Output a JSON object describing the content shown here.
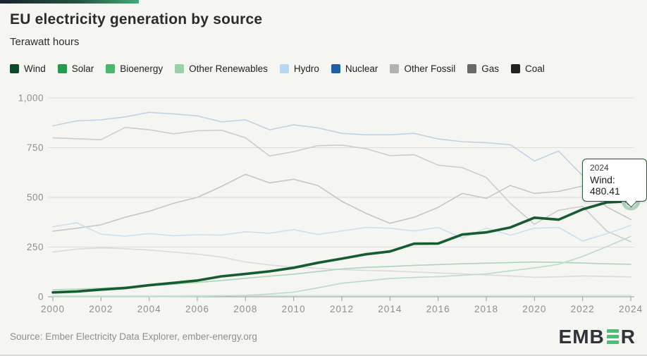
{
  "header": {
    "title": "EU electricity generation by source",
    "subtitle": "Terawatt hours"
  },
  "accent_colors": {
    "gradient_from": "#1b2430",
    "gradient_to": "#41a97a"
  },
  "chart_data": {
    "type": "line",
    "title": "EU electricity generation by source",
    "ylabel": "Terawatt hours",
    "xlabel": "",
    "ylim": [
      0,
      1000
    ],
    "grid": true,
    "legend_position": "top",
    "highlighted_series": "Wind",
    "x": [
      2000,
      2001,
      2002,
      2003,
      2004,
      2005,
      2006,
      2007,
      2008,
      2009,
      2010,
      2011,
      2012,
      2013,
      2014,
      2015,
      2016,
      2017,
      2018,
      2019,
      2020,
      2021,
      2022,
      2023,
      2024
    ],
    "x_tick_labels": [
      "2000",
      "2002",
      "2004",
      "2006",
      "2008",
      "2010",
      "2012",
      "2014",
      "2016",
      "2018",
      "2020",
      "2022",
      "2024"
    ],
    "y_ticks": [
      {
        "label": "1,000",
        "value": 1000
      },
      {
        "label": "750",
        "value": 750
      },
      {
        "label": "500",
        "value": 500
      },
      {
        "label": "250",
        "value": 250
      },
      {
        "label": "0",
        "value": 0
      }
    ],
    "series": [
      {
        "name": "Wind",
        "legend_color": "#0d4a26",
        "line_color": "#155c31",
        "values": [
          22,
          27,
          36,
          44,
          58,
          70,
          82,
          103,
          115,
          128,
          146,
          171,
          192,
          214,
          228,
          267,
          268,
          313,
          324,
          349,
          398,
          388,
          440,
          475,
          480.41
        ]
      },
      {
        "name": "Solar",
        "legend_color": "#249a4e",
        "line_color": "#b9ddc6",
        "values": [
          0.1,
          0.2,
          0.3,
          0.5,
          0.7,
          1.5,
          2.5,
          3.8,
          7,
          14,
          23,
          45,
          68,
          80,
          92,
          97,
          101,
          108,
          115,
          131,
          145,
          163,
          203,
          252,
          304
        ]
      },
      {
        "name": "Bioenergy",
        "legend_color": "#4ab86b",
        "line_color": "#a9d6b8",
        "values": [
          35,
          39,
          43,
          49,
          55,
          63,
          72,
          82,
          93,
          104,
          114,
          127,
          140,
          148,
          152,
          158,
          162,
          166,
          169,
          172,
          175,
          173,
          170,
          166,
          163
        ]
      },
      {
        "name": "Other Renewables",
        "legend_color": "#9bd1a8",
        "line_color": "#cde7d4",
        "values": [
          5,
          5,
          5,
          5,
          5,
          5,
          6,
          6,
          6,
          6,
          6,
          6,
          6,
          6,
          6,
          6,
          6,
          6,
          6,
          6,
          7,
          7,
          7,
          7,
          7
        ]
      },
      {
        "name": "Hydro",
        "legend_color": "#b4d8f3",
        "line_color": "#cadff0",
        "values": [
          353,
          372,
          315,
          305,
          318,
          307,
          312,
          310,
          327,
          320,
          338,
          313,
          331,
          349,
          345,
          331,
          349,
          295,
          345,
          310,
          345,
          349,
          281,
          317,
          359
        ]
      },
      {
        "name": "Nuclear",
        "legend_color": "#1d60a7",
        "line_color": "#c0d3e6",
        "values": [
          860,
          885,
          890,
          905,
          928,
          920,
          910,
          880,
          890,
          840,
          865,
          850,
          822,
          815,
          815,
          822,
          794,
          780,
          775,
          765,
          683,
          733,
          609,
          619,
          670
        ]
      },
      {
        "name": "Other Fossil",
        "legend_color": "#b2b2b2",
        "line_color": "#dadada",
        "values": [
          225,
          240,
          246,
          242,
          235,
          225,
          215,
          200,
          175,
          160,
          150,
          143,
          137,
          133,
          130,
          125,
          120,
          115,
          110,
          105,
          98,
          100,
          105,
          102,
          100
        ]
      },
      {
        "name": "Gas",
        "legend_color": "#696969",
        "line_color": "#c6c6c6",
        "values": [
          330,
          345,
          362,
          400,
          430,
          470,
          500,
          555,
          616,
          573,
          591,
          560,
          480,
          420,
          370,
          400,
          450,
          520,
          495,
          560,
          520,
          530,
          557,
          452,
          389
        ]
      },
      {
        "name": "Coal",
        "legend_color": "#222222",
        "line_color": "#cdcdcd",
        "values": [
          800,
          795,
          790,
          852,
          840,
          820,
          835,
          838,
          800,
          708,
          730,
          760,
          763,
          745,
          710,
          715,
          662,
          650,
          600,
          470,
          365,
          435,
          455,
          331,
          277
        ]
      }
    ],
    "tooltip": {
      "year": "2024",
      "series": "Wind",
      "value": "480.41",
      "text": "Wind: 480.41"
    }
  },
  "footer": {
    "source": "Source: Ember Electricity Data Explorer, ember-energy.org",
    "logo_prefix": "EMB",
    "logo_suffix": "R"
  }
}
